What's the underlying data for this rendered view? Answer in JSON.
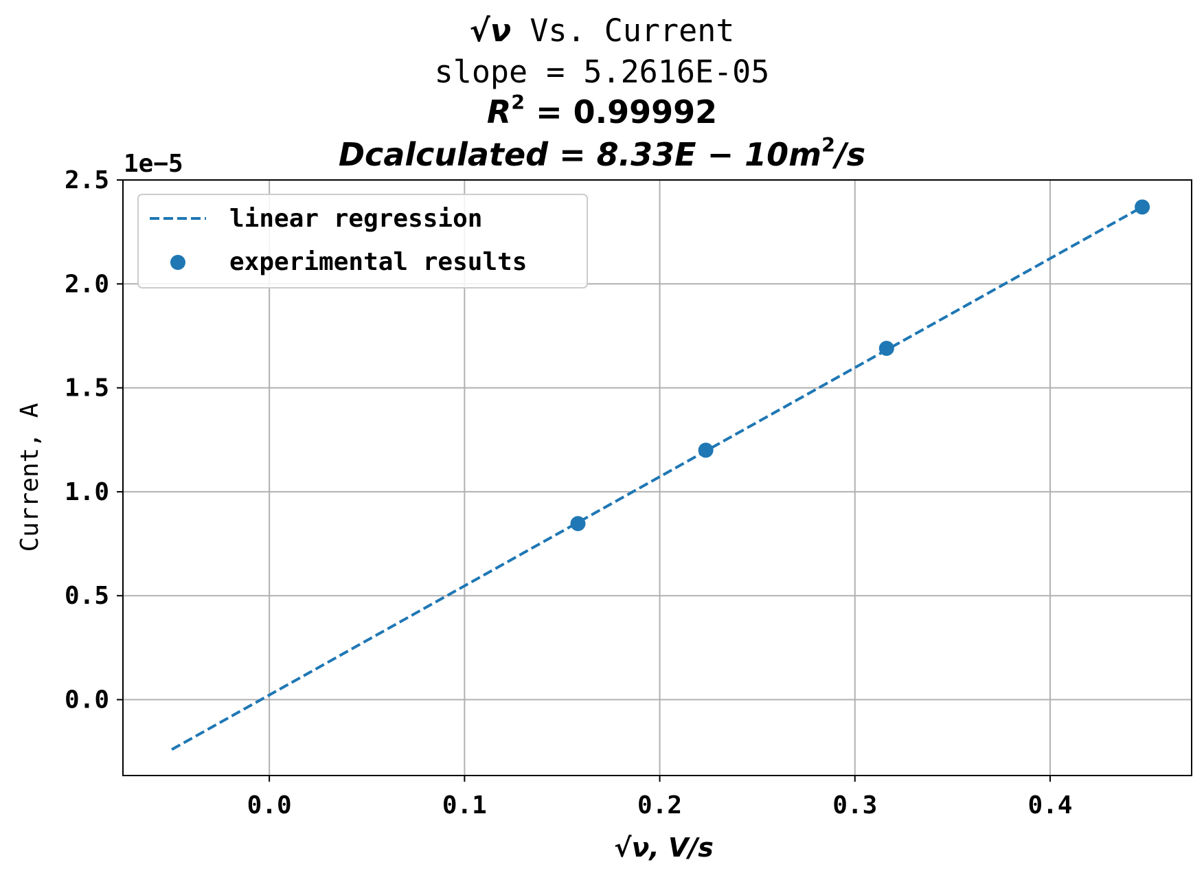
{
  "chart_data": {
    "type": "scatter",
    "title": {
      "line1_symbol": "√ν",
      "line1_text": " Vs. Current",
      "line2": "slope = 5.2616E-05",
      "line3_prefix": "R",
      "line3_sup": "2",
      "line3_suffix": " = 0.99992",
      "line4_prefix": "Dcalculated = 8.33E − 10m",
      "line4_sup": "2",
      "line4_suffix": "/s"
    },
    "xlabel": "√ν, V/s",
    "ylabel": "Current, A",
    "y_offset_text": "1e−5",
    "xlim": [
      -0.075,
      0.4725
    ],
    "ylim": [
      -3.65e-06,
      2.5e-05
    ],
    "x_ticks": [
      0.0,
      0.1,
      0.2,
      0.3,
      0.4
    ],
    "x_tick_labels": [
      "0.0",
      "0.1",
      "0.2",
      "0.3",
      "0.4"
    ],
    "y_ticks": [
      0,
      5e-06,
      1e-05,
      1.5e-05,
      2e-05,
      2.5e-05
    ],
    "y_tick_labels": [
      "0.0",
      "0.5",
      "1.0",
      "1.5",
      "2.0",
      "2.5"
    ],
    "grid": true,
    "legend_position": "top-left",
    "color": "#1f77b4",
    "series": [
      {
        "name": "linear regression",
        "kind": "line",
        "style": "dashed",
        "x": [
          -0.05,
          0.4472
        ],
        "y": [
          -2.4e-06,
          2.37e-05
        ]
      },
      {
        "name": "experimental results",
        "kind": "scatter",
        "x": [
          0.1581,
          0.2236,
          0.3162,
          0.4472
        ],
        "y": [
          8.47e-06,
          1.2e-05,
          1.69e-05,
          2.37e-05
        ]
      }
    ]
  }
}
